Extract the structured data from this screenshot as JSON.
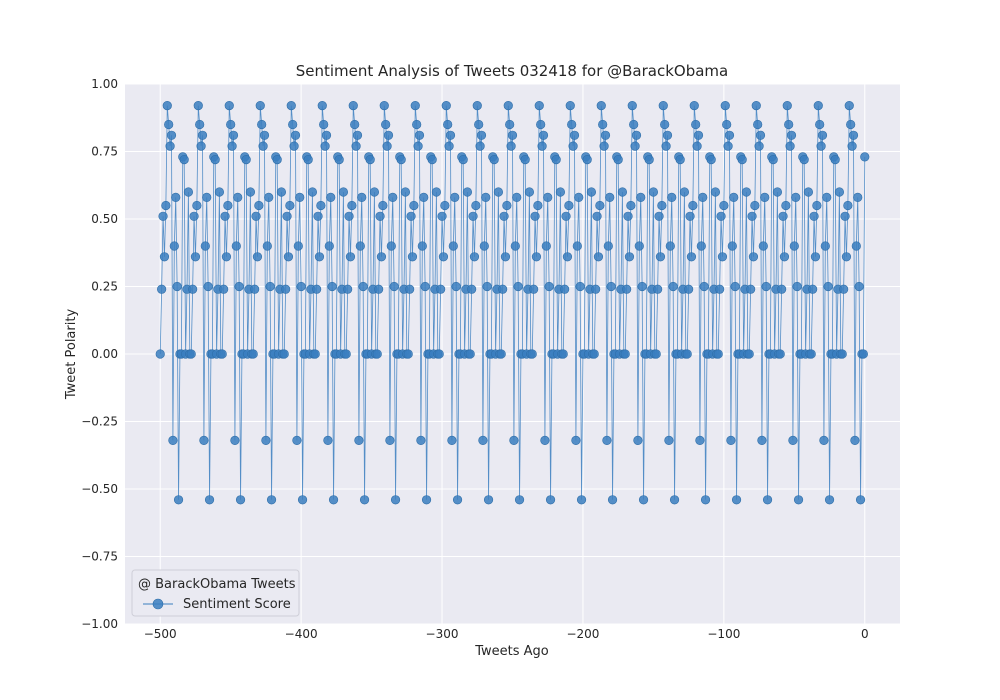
{
  "chart_data": {
    "type": "line",
    "title": "Sentiment Analysis of Tweets 032418 for @BarackObama",
    "xlabel": "Tweets Ago",
    "ylabel": "Tweet Polarity",
    "xlim": [
      -525,
      25
    ],
    "ylim": [
      -1.0,
      1.0
    ],
    "x_ticks": [
      -500,
      -400,
      -300,
      -200,
      -100,
      0
    ],
    "x_tick_labels": [
      "−500",
      "−400",
      "−300",
      "−200",
      "−100",
      "0"
    ],
    "y_ticks": [
      1.0,
      0.75,
      0.5,
      0.25,
      0.0,
      -0.25,
      -0.5,
      -0.75,
      -1.0
    ],
    "y_tick_labels": [
      "1.00",
      "0.75",
      "0.50",
      "0.25",
      "0.00",
      "−0.25",
      "−0.50",
      "−0.75",
      "−1.00"
    ],
    "grid": true,
    "legend": {
      "title": "@ BarackObama Tweets",
      "placement": "bottom-left",
      "entries": [
        "Sentiment Score"
      ]
    },
    "series": [
      {
        "name": "Sentiment Score",
        "color": "#3a7ebf",
        "marker": "circle",
        "pattern": [
          0.0,
          0.24,
          0.51,
          0.36,
          0.55,
          0.92,
          0.85,
          0.77,
          0.81,
          -0.32,
          0.4,
          0.58,
          0.25,
          -0.54,
          0.0,
          0.0,
          0.73,
          0.72,
          0.0,
          0.24,
          0.6,
          0.0
        ],
        "notes": "values repeat through all 500 tweets"
      }
    ],
    "x_start": -500,
    "x_end": 0
  }
}
